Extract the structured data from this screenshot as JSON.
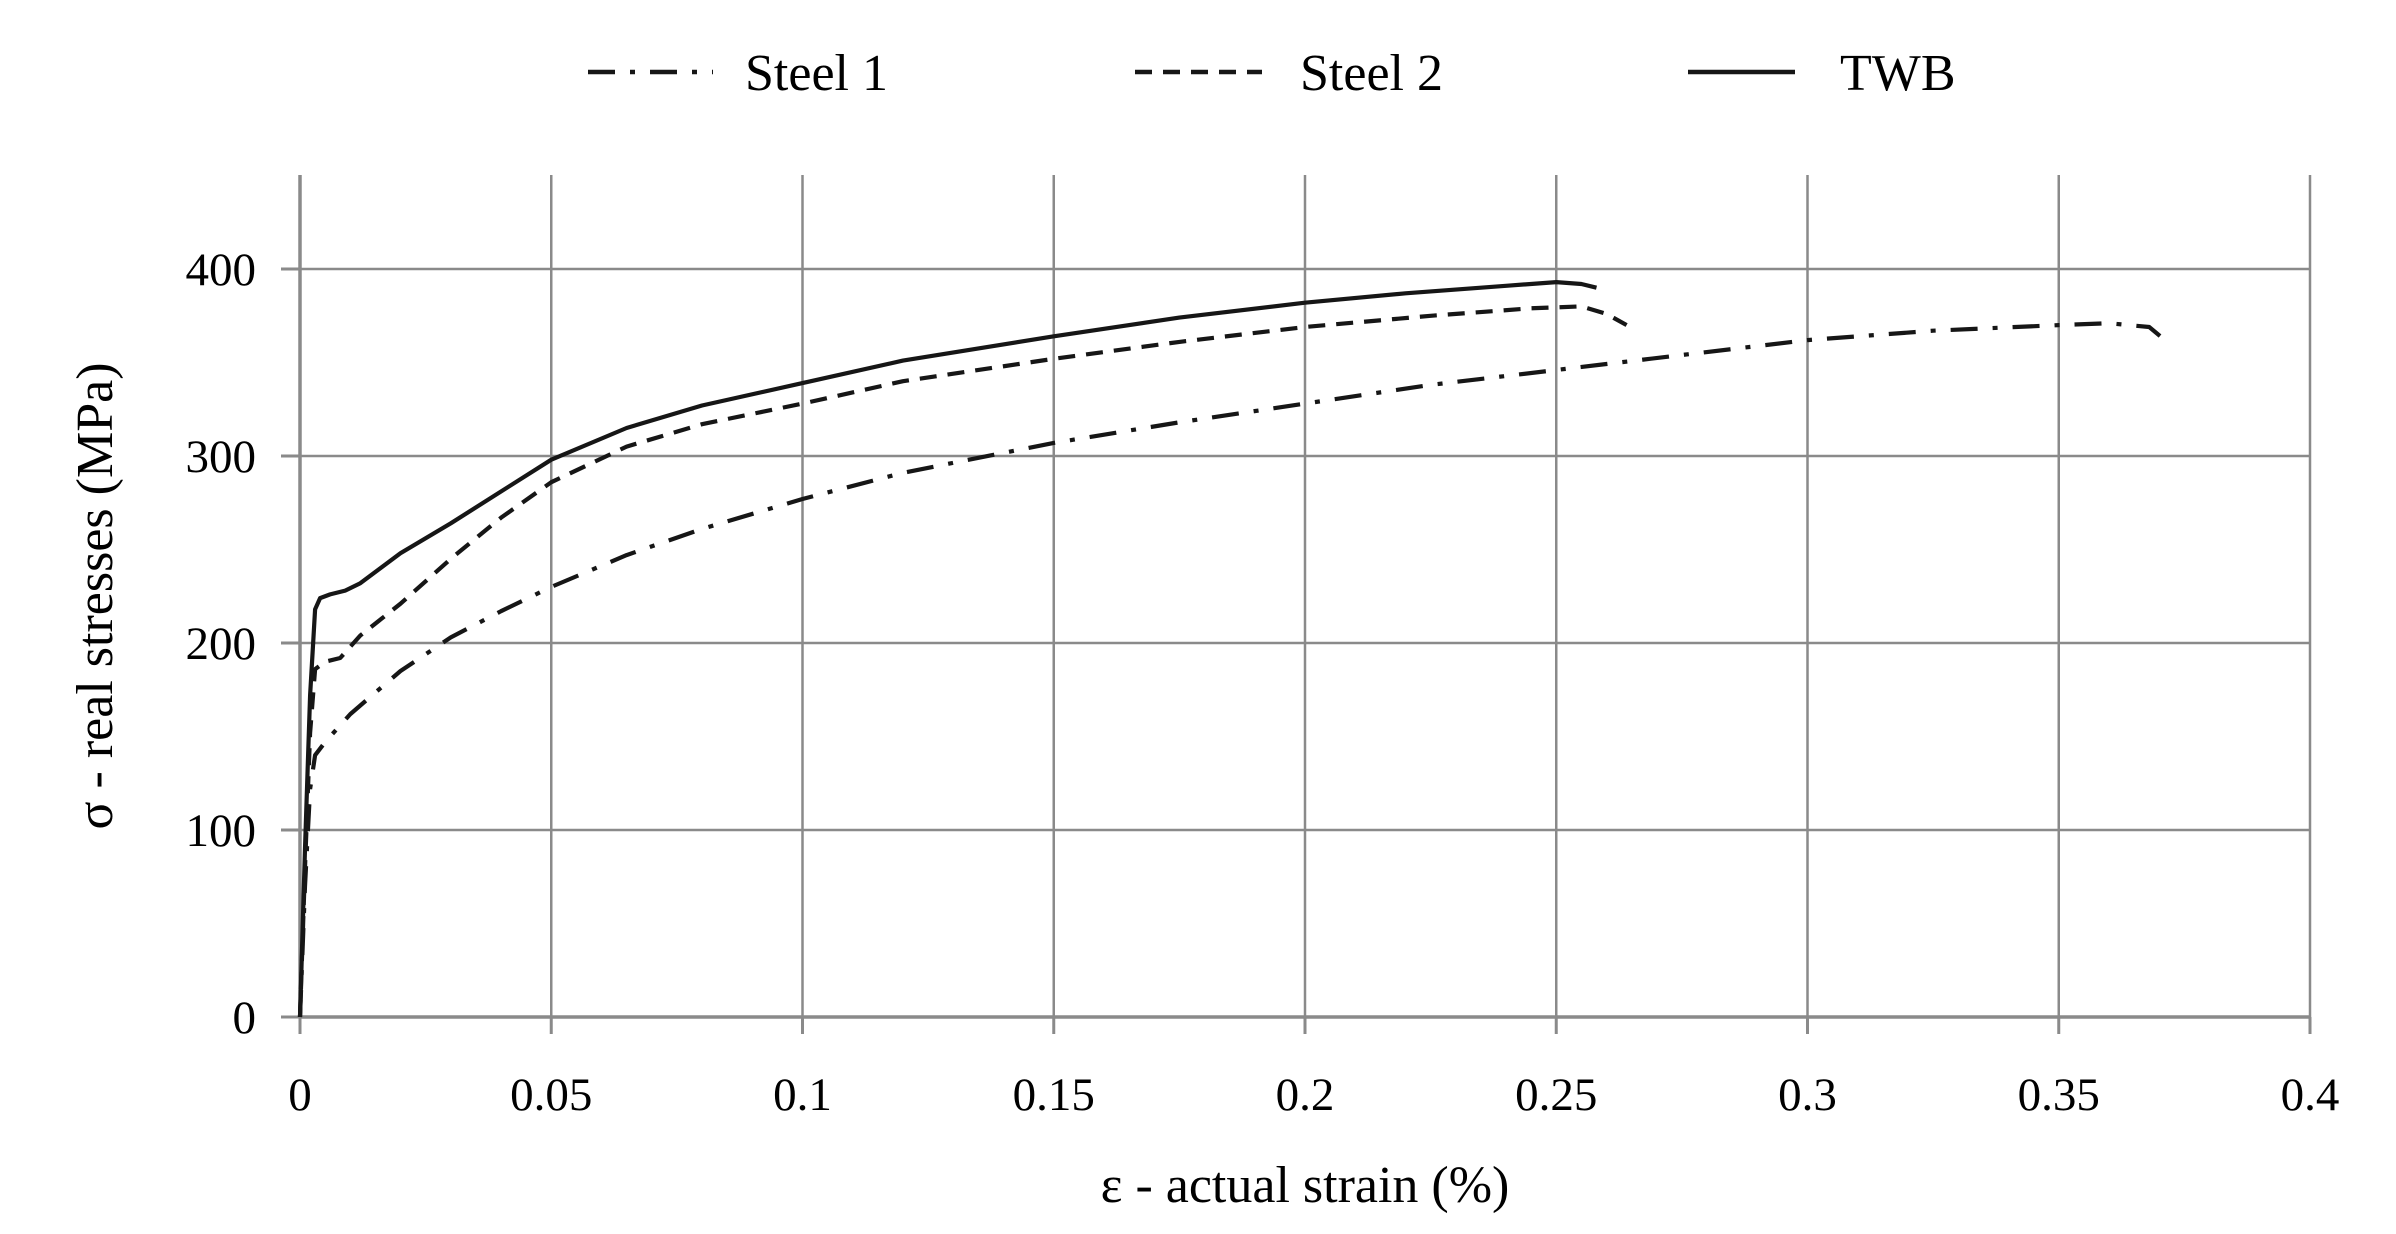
{
  "chart_data": {
    "type": "line",
    "title": "",
    "xlabel": "ε - actual strain (%)",
    "ylabel": "σ - real stresses (MPa)",
    "xlim": [
      0,
      0.4
    ],
    "ylim": [
      0,
      450
    ],
    "x_ticks": [
      0,
      0.05,
      0.1,
      0.15,
      0.2,
      0.25,
      0.3,
      0.35,
      0.4
    ],
    "x_tick_labels": [
      "0",
      "0.05",
      "0.1",
      "0.15",
      "0.2",
      "0.25",
      "0.3",
      "0.35",
      "0.4"
    ],
    "y_ticks": [
      0,
      100,
      200,
      300,
      400
    ],
    "y_tick_labels": [
      "0",
      "100",
      "200",
      "300",
      "400"
    ],
    "grid": true,
    "legend_position": "top",
    "series": [
      {
        "name": "Steel 1",
        "line_style": "dash-dot",
        "color": "#161616",
        "points": [
          [
            0,
            0
          ],
          [
            0.001,
            70
          ],
          [
            0.002,
            122
          ],
          [
            0.003,
            140
          ],
          [
            0.005,
            147
          ],
          [
            0.01,
            162
          ],
          [
            0.02,
            185
          ],
          [
            0.03,
            203
          ],
          [
            0.04,
            217
          ],
          [
            0.05,
            230
          ],
          [
            0.065,
            247
          ],
          [
            0.08,
            261
          ],
          [
            0.1,
            277
          ],
          [
            0.12,
            291
          ],
          [
            0.15,
            307
          ],
          [
            0.175,
            318
          ],
          [
            0.2,
            328
          ],
          [
            0.225,
            338
          ],
          [
            0.25,
            346
          ],
          [
            0.275,
            354
          ],
          [
            0.3,
            362
          ],
          [
            0.325,
            367
          ],
          [
            0.35,
            370
          ],
          [
            0.36,
            371
          ],
          [
            0.368,
            369
          ],
          [
            0.372,
            360
          ]
        ]
      },
      {
        "name": "Steel 2",
        "line_style": "dashed",
        "color": "#161616",
        "points": [
          [
            0,
            0
          ],
          [
            0.001,
            80
          ],
          [
            0.002,
            152
          ],
          [
            0.003,
            186
          ],
          [
            0.005,
            190
          ],
          [
            0.008,
            192
          ],
          [
            0.012,
            204
          ],
          [
            0.02,
            221
          ],
          [
            0.03,
            245
          ],
          [
            0.04,
            267
          ],
          [
            0.05,
            286
          ],
          [
            0.065,
            305
          ],
          [
            0.08,
            317
          ],
          [
            0.1,
            328
          ],
          [
            0.12,
            340
          ],
          [
            0.15,
            352
          ],
          [
            0.175,
            361
          ],
          [
            0.2,
            369
          ],
          [
            0.225,
            375
          ],
          [
            0.245,
            379
          ],
          [
            0.255,
            380
          ],
          [
            0.26,
            376
          ],
          [
            0.264,
            370
          ]
        ]
      },
      {
        "name": "TWB",
        "line_style": "solid",
        "color": "#161616",
        "points": [
          [
            0,
            0
          ],
          [
            0.001,
            90
          ],
          [
            0.002,
            172
          ],
          [
            0.003,
            218
          ],
          [
            0.004,
            224
          ],
          [
            0.006,
            226
          ],
          [
            0.009,
            228
          ],
          [
            0.012,
            232
          ],
          [
            0.02,
            248
          ],
          [
            0.03,
            264
          ],
          [
            0.04,
            281
          ],
          [
            0.05,
            298
          ],
          [
            0.065,
            315
          ],
          [
            0.08,
            327
          ],
          [
            0.1,
            339
          ],
          [
            0.12,
            351
          ],
          [
            0.15,
            364
          ],
          [
            0.175,
            374
          ],
          [
            0.2,
            382
          ],
          [
            0.22,
            387
          ],
          [
            0.24,
            391
          ],
          [
            0.25,
            393
          ],
          [
            0.255,
            392
          ],
          [
            0.258,
            390
          ]
        ]
      }
    ]
  },
  "colors": {
    "grid": "#8a8a8a",
    "curve": "#161616",
    "text": "#000000",
    "background": "#ffffff"
  }
}
